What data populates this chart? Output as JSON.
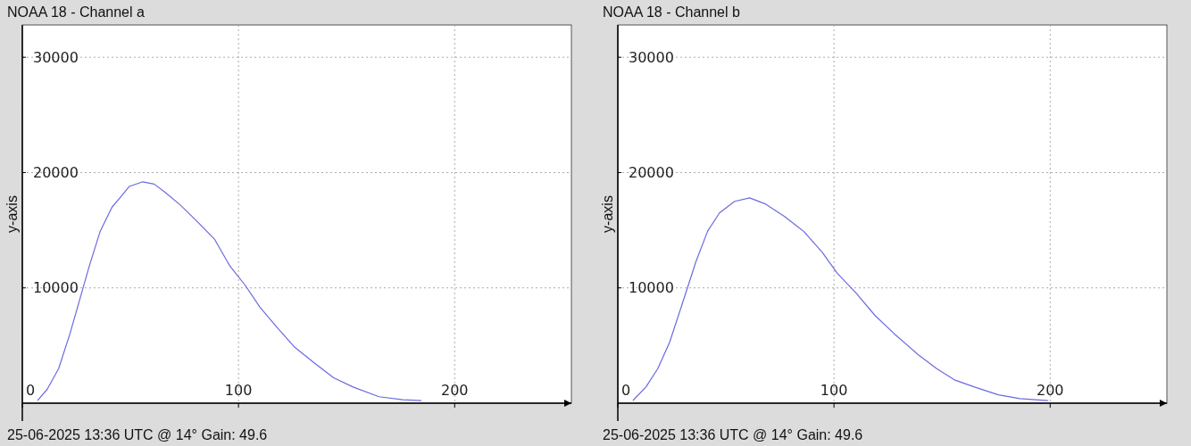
{
  "chart_data": [
    {
      "type": "line",
      "title": "NOAA 18 - Channel a",
      "ylabel": "y-axis",
      "annotations": [
        "25-06-2025 13:36 UTC @ 14° Gain: 49.6"
      ],
      "xlim": [
        0,
        254
      ],
      "ylim": [
        0,
        32800
      ],
      "xticks": [
        0,
        100,
        200
      ],
      "yticks": [
        10000,
        20000,
        30000
      ],
      "grid": true,
      "series": [
        {
          "color": "#6a6ae0",
          "x": [
            7,
            11.5,
            16.8,
            22,
            26.5,
            31,
            36,
            41.5,
            46,
            49.5,
            55.7,
            61,
            66,
            73,
            80.4,
            89,
            96,
            103,
            110,
            117.5,
            126,
            135,
            144,
            153,
            165,
            176,
            184.6
          ],
          "values": [
            230,
            1200,
            3000,
            6000,
            8950,
            11900,
            14900,
            17000,
            18000,
            18800,
            19200,
            19000,
            18300,
            17200,
            15850,
            14200,
            11900,
            10250,
            8300,
            6650,
            4850,
            3500,
            2200,
            1400,
            560,
            300,
            230
          ]
        }
      ]
    },
    {
      "type": "line",
      "title": "NOAA 18 - Channel b",
      "ylabel": "y-axis",
      "annotations": [
        "25-06-2025 13:36 UTC @ 14° Gain: 49.6"
      ],
      "xlim": [
        0,
        254
      ],
      "ylim": [
        0,
        32800
      ],
      "xticks": [
        0,
        100,
        200
      ],
      "yticks": [
        10000,
        20000,
        30000
      ],
      "grid": true,
      "series": [
        {
          "color": "#6a6ae0",
          "x": [
            7,
            13,
            18.5,
            24,
            31,
            36,
            41.5,
            47,
            54,
            61,
            68,
            77,
            86,
            94.5,
            101.6,
            110,
            119,
            128,
            139,
            147.5,
            156,
            165,
            176,
            186,
            199
          ],
          "values": [
            230,
            1400,
            3000,
            5300,
            9300,
            12200,
            14900,
            16500,
            17500,
            17800,
            17300,
            16200,
            14900,
            13100,
            11250,
            9600,
            7600,
            6000,
            4200,
            3000,
            2000,
            1400,
            720,
            400,
            230
          ]
        }
      ]
    }
  ]
}
